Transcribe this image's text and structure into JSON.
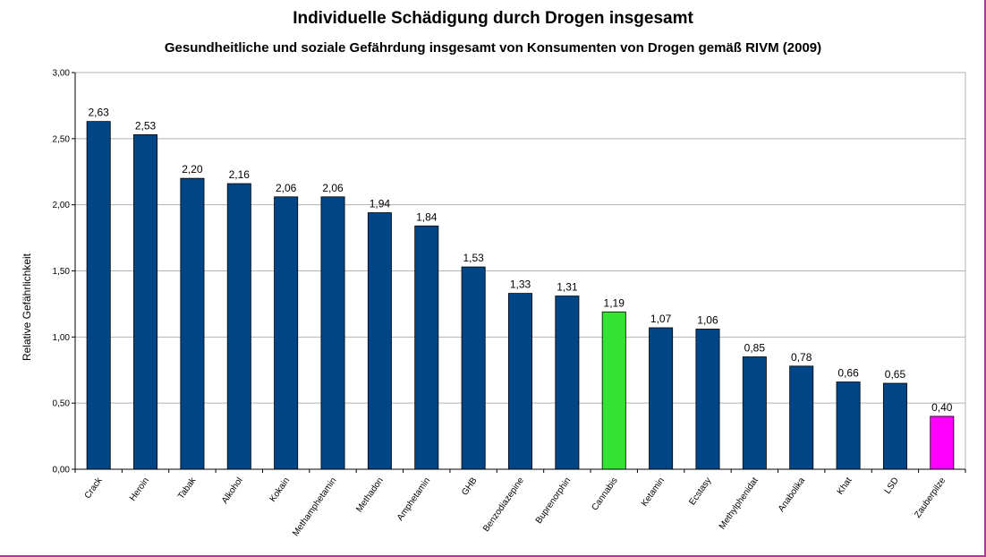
{
  "chart_data": {
    "type": "bar",
    "title": "Individuelle Schädigung durch Drogen insgesamt",
    "subtitle": "Gesundheitliche und soziale Gefährdung insgesamt von Konsumenten von Drogen gemäß RIVM (2009)",
    "xlabel": "",
    "ylabel": "Relative Gefährlichkeit",
    "ylim": [
      0,
      3
    ],
    "yticks": [
      "0,00",
      "0,50",
      "1,00",
      "1,50",
      "2,00",
      "2,50",
      "3,00"
    ],
    "grid": true,
    "categories": [
      "Crack",
      "Heroin",
      "Tabak",
      "Alkohol",
      "Kokain",
      "Methamphetamin",
      "Methadon",
      "Amphetamin",
      "GHB",
      "Benzodiazepine",
      "Buprenorphin",
      "Cannabis",
      "Ketamin",
      "Ecstasy",
      "Methylphenidat",
      "Anabolika",
      "Khat",
      "LSD",
      "Zauberpilze"
    ],
    "values": [
      2.63,
      2.53,
      2.2,
      2.16,
      2.06,
      2.06,
      1.94,
      1.84,
      1.53,
      1.33,
      1.31,
      1.19,
      1.07,
      1.06,
      0.85,
      0.78,
      0.66,
      0.65,
      0.4
    ],
    "value_labels": [
      "2,63",
      "2,53",
      "2,20",
      "2,16",
      "2,06",
      "2,06",
      "1,94",
      "1,84",
      "1,53",
      "1,33",
      "1,31",
      "1,19",
      "1,07",
      "1,06",
      "0,85",
      "0,78",
      "0,66",
      "0,65",
      "0,40"
    ],
    "colors": {
      "default": "#004586",
      "highlight": {
        "Cannabis": "#33e433",
        "Zauberpilze": "#ff00ff"
      },
      "frame": "#b0389f",
      "grid": "#b3b3b3"
    }
  }
}
